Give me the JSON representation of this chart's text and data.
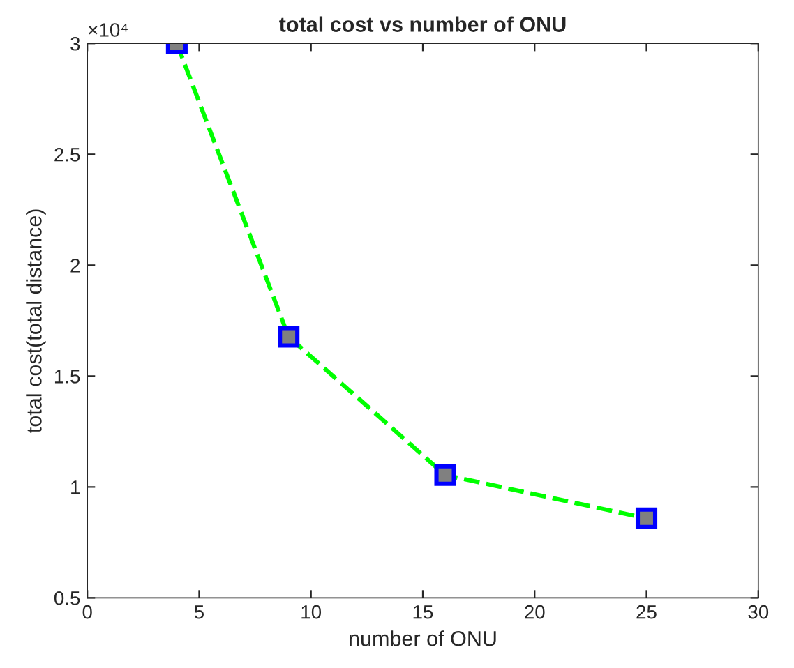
{
  "chart_data": {
    "type": "line",
    "title": "total cost vs number of ONU",
    "xlabel": "number of ONU",
    "ylabel": "total cost(total distance)",
    "x": [
      4,
      9,
      16,
      25
    ],
    "series": [
      {
        "color": "#00ff00",
        "values": [
          3.0,
          1.677,
          1.054,
          0.859
        ]
      }
    ],
    "marker": "square",
    "line_style": "dashed",
    "grid": false,
    "legend": false,
    "xlim": [
      0,
      30
    ],
    "xticks": [
      0,
      5,
      10,
      15,
      20,
      25,
      30
    ],
    "ylim": [
      0.5,
      3
    ],
    "yticks": [
      0.5,
      1,
      1.5,
      2,
      2.5,
      3
    ],
    "annotations": [
      "×10⁴"
    ]
  }
}
